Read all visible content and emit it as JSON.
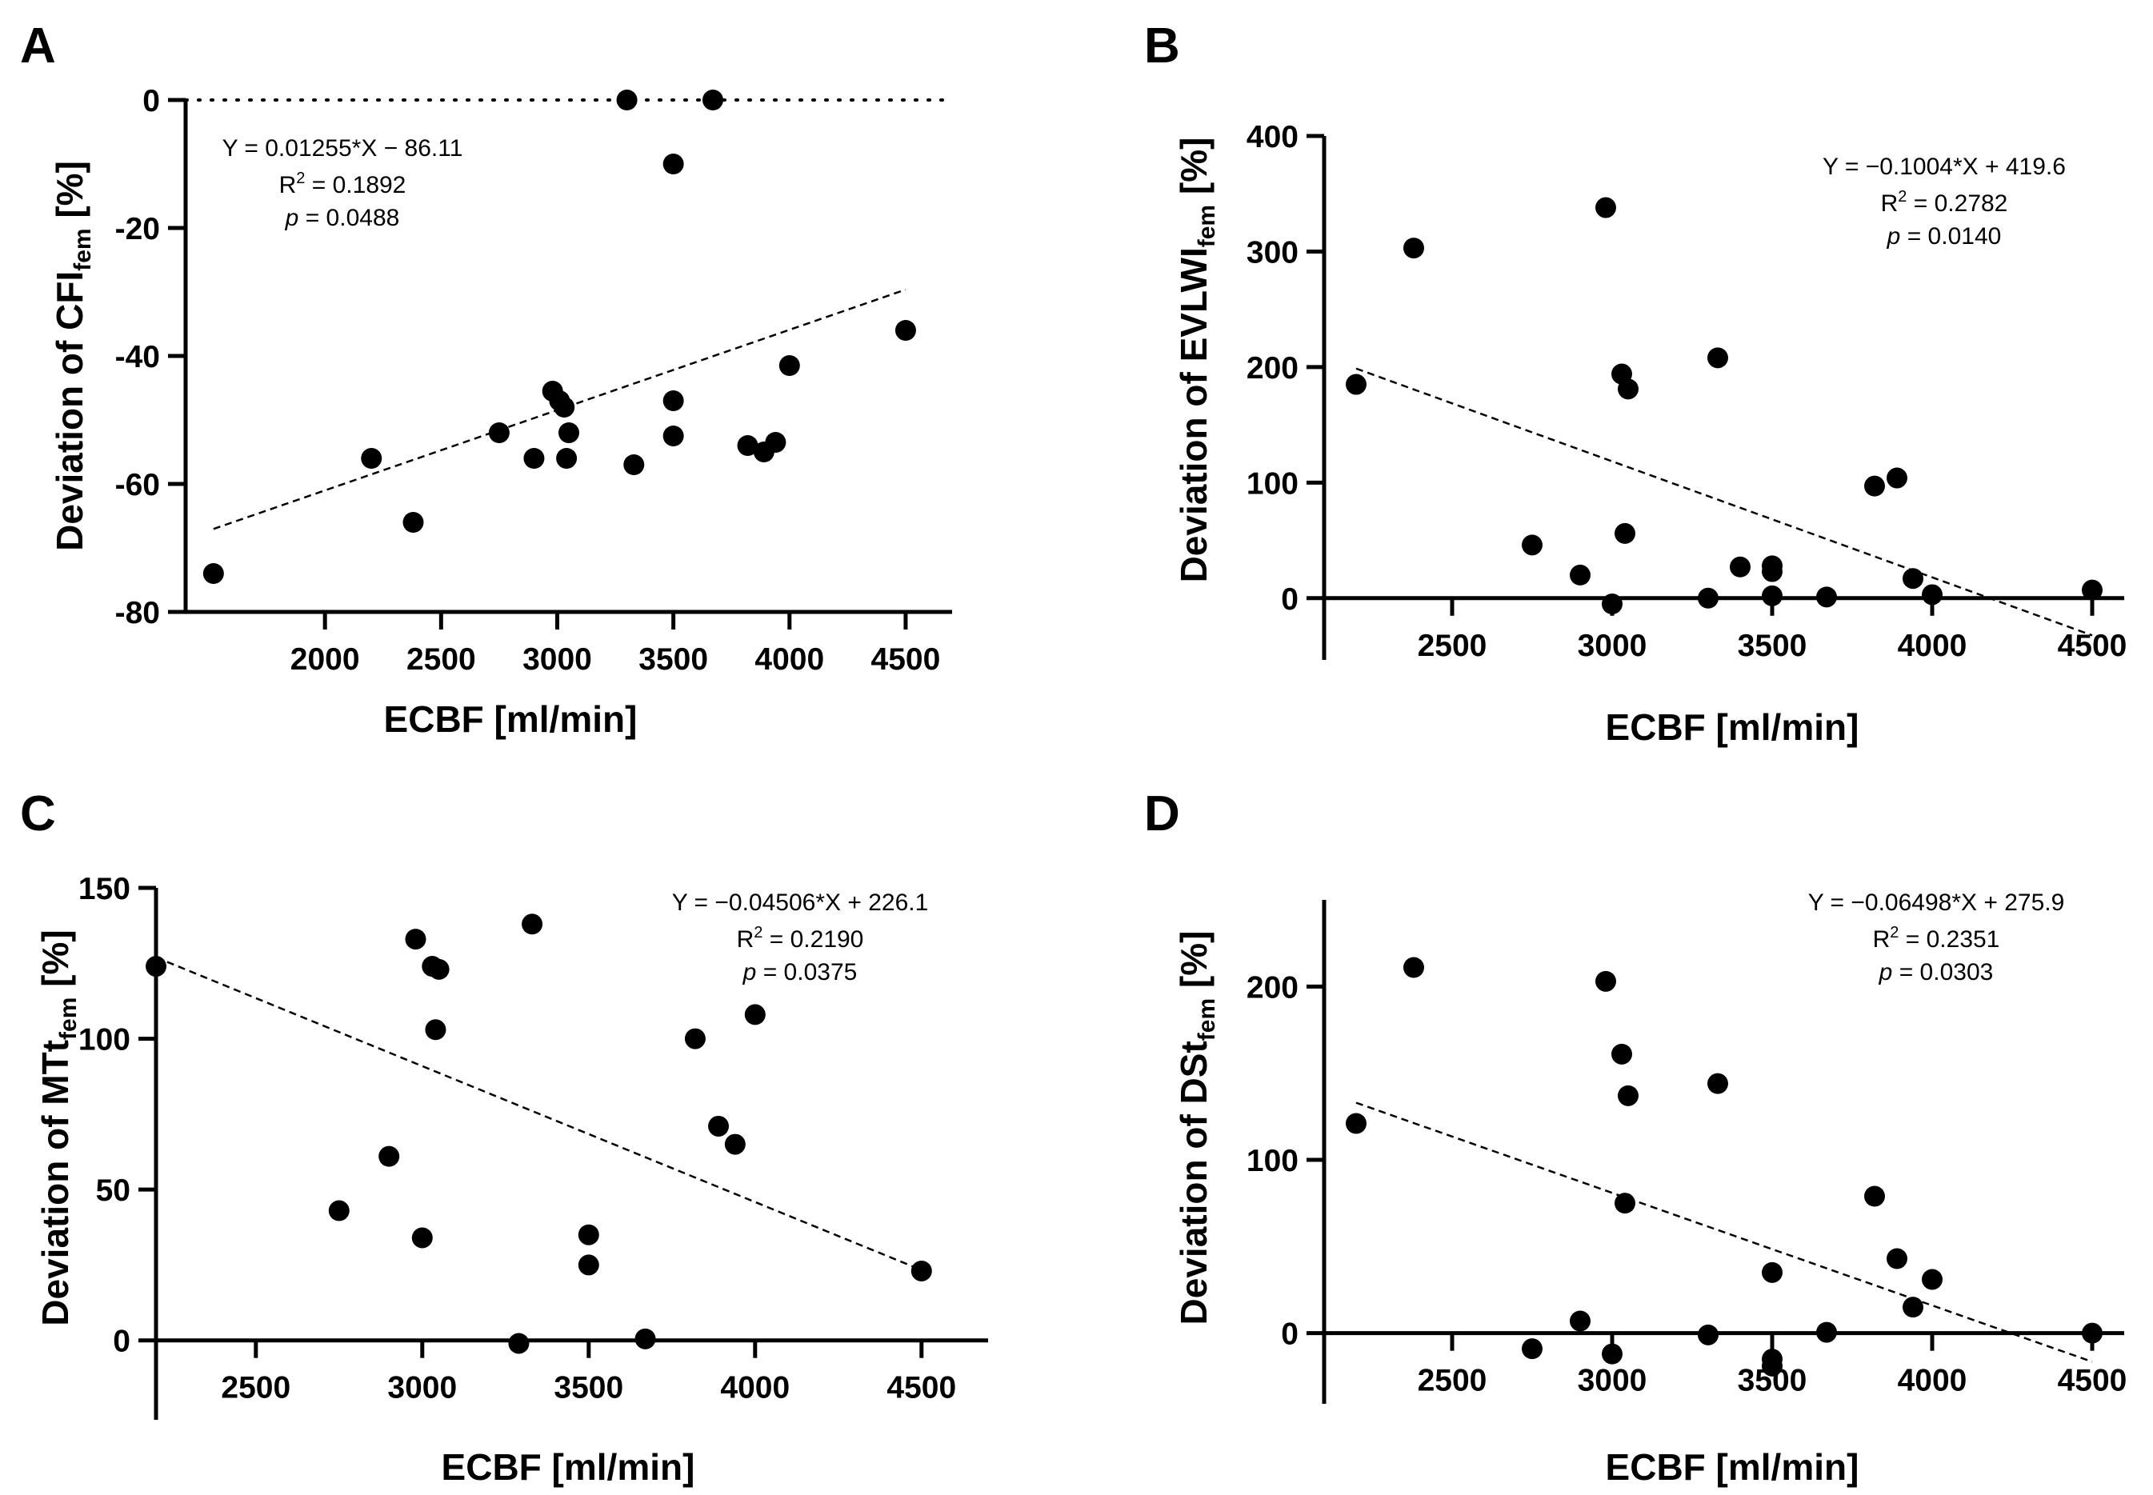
{
  "chart_data": [
    {
      "panel": "A",
      "type": "scatter",
      "xlabel": "ECBF [ml/min]",
      "ylabel_main": "Deviation of CFI",
      "ylabel_sub": "fem",
      "ylabel_tail": " [%]",
      "xlim": [
        1400,
        4700
      ],
      "ylim": [
        -80,
        0
      ],
      "xticks": [
        2000,
        2500,
        3000,
        3500,
        4000,
        4500
      ],
      "yticks": [
        0,
        -20,
        -40,
        -60,
        -80
      ],
      "reference_line": {
        "y": 0,
        "style": "dotted"
      },
      "fit": {
        "slope": 0.01255,
        "intercept": -86.11,
        "x_range": [
          1520,
          4500
        ]
      },
      "annotation": {
        "equation": "Y = 0.01255*X − 86.11",
        "r2_prefix": "R",
        "r2_sup": "2",
        "r2_value": " = 0.1892",
        "p_label": "p",
        "p_value": " = 0.0488"
      },
      "x": [
        1520,
        2200,
        2380,
        2750,
        2900,
        2980,
        3010,
        3030,
        3040,
        3050,
        3300,
        3330,
        3500,
        3500,
        3500,
        3670,
        3820,
        3890,
        3940,
        4000,
        4500
      ],
      "y": [
        -74,
        -56,
        -66,
        -52,
        -56,
        -45.5,
        -47,
        -48,
        -56,
        -52,
        0,
        -57,
        -10,
        -47,
        -52.5,
        0,
        -54,
        -55,
        -53.5,
        -41.5,
        -36
      ]
    },
    {
      "panel": "B",
      "type": "scatter",
      "xlabel": "ECBF [ml/min]",
      "ylabel_main": "Deviation of EVLWI",
      "ylabel_sub": "fem",
      "ylabel_tail": " [%]",
      "xlim": [
        2100,
        4600
      ],
      "ylim": [
        -50,
        400
      ],
      "xticks": [
        2500,
        3000,
        3500,
        4000,
        4500
      ],
      "yticks": [
        0,
        100,
        200,
        300,
        400
      ],
      "reference_line": {
        "y": 0,
        "style": "solid"
      },
      "fit": {
        "slope": -0.1004,
        "intercept": 419.6,
        "x_range": [
          2200,
          4500
        ]
      },
      "annotation": {
        "equation": "Y = −0.1004*X + 419.6",
        "r2_prefix": "R",
        "r2_sup": "2",
        "r2_value": " = 0.2782",
        "p_label": "p",
        "p_value": " = 0.0140"
      },
      "x": [
        2200,
        2380,
        2750,
        2900,
        2980,
        3000,
        3030,
        3040,
        3050,
        3300,
        3330,
        3400,
        3500,
        3500,
        3500,
        3670,
        3820,
        3890,
        3940,
        4000,
        4500
      ],
      "y": [
        185,
        303,
        46,
        20,
        338,
        -5,
        194,
        56,
        181,
        0,
        208,
        27,
        28,
        23,
        2,
        1,
        97,
        104,
        17,
        3,
        7
      ]
    },
    {
      "panel": "C",
      "type": "scatter",
      "xlabel": "ECBF [ml/min]",
      "ylabel_main": "Deviation of MTt",
      "ylabel_sub": "fem",
      "ylabel_tail": " [%]",
      "xlim": [
        2200,
        4700
      ],
      "ylim": [
        -25,
        150
      ],
      "xticks": [
        2500,
        3000,
        3500,
        4000,
        4500
      ],
      "yticks": [
        0,
        50,
        100,
        150
      ],
      "reference_line": {
        "y": 0,
        "style": "solid"
      },
      "fit": {
        "slope": -0.04506,
        "intercept": 226.1,
        "x_range": [
          2200,
          4500
        ]
      },
      "annotation": {
        "equation": "Y = −0.04506*X + 226.1",
        "r2_prefix": "R",
        "r2_sup": "2",
        "r2_value": " = 0.2190",
        "p_label": "p",
        "p_value": " = 0.0375"
      },
      "x": [
        2200,
        2750,
        2900,
        2980,
        3000,
        3030,
        3040,
        3050,
        3290,
        3330,
        3500,
        3500,
        3670,
        3820,
        3890,
        3940,
        4000,
        4500
      ],
      "y": [
        124,
        43,
        61,
        133,
        34,
        124,
        103,
        123,
        -1,
        138,
        35,
        25,
        0.5,
        100,
        71,
        65,
        108,
        23
      ]
    },
    {
      "panel": "D",
      "type": "scatter",
      "xlabel": "ECBF [ml/min]",
      "ylabel_main": "Deviation of DSt",
      "ylabel_sub": "fem",
      "ylabel_tail": " [%]",
      "xlim": [
        2100,
        4600
      ],
      "ylim": [
        -50,
        250
      ],
      "xticks": [
        2500,
        3000,
        3500,
        4000,
        4500
      ],
      "yticks": [
        0,
        100,
        200
      ],
      "reference_line": {
        "y": 0,
        "style": "solid"
      },
      "fit": {
        "slope": -0.06498,
        "intercept": 275.9,
        "x_range": [
          2200,
          4500
        ]
      },
      "annotation": {
        "equation": "Y = −0.06498*X + 275.9",
        "r2_prefix": "R",
        "r2_sup": "2",
        "r2_value": " = 0.2351",
        "p_label": "p",
        "p_value": " = 0.0303"
      },
      "x": [
        2200,
        2380,
        2750,
        2900,
        2980,
        3000,
        3030,
        3040,
        3050,
        3300,
        3330,
        3500,
        3500,
        3500,
        3670,
        3820,
        3890,
        3940,
        4000,
        4500
      ],
      "y": [
        121,
        211,
        -9,
        7,
        203,
        -12,
        161,
        75,
        137,
        -1,
        144,
        35,
        -15,
        -19,
        0.5,
        79,
        43,
        15,
        31,
        0
      ]
    }
  ]
}
